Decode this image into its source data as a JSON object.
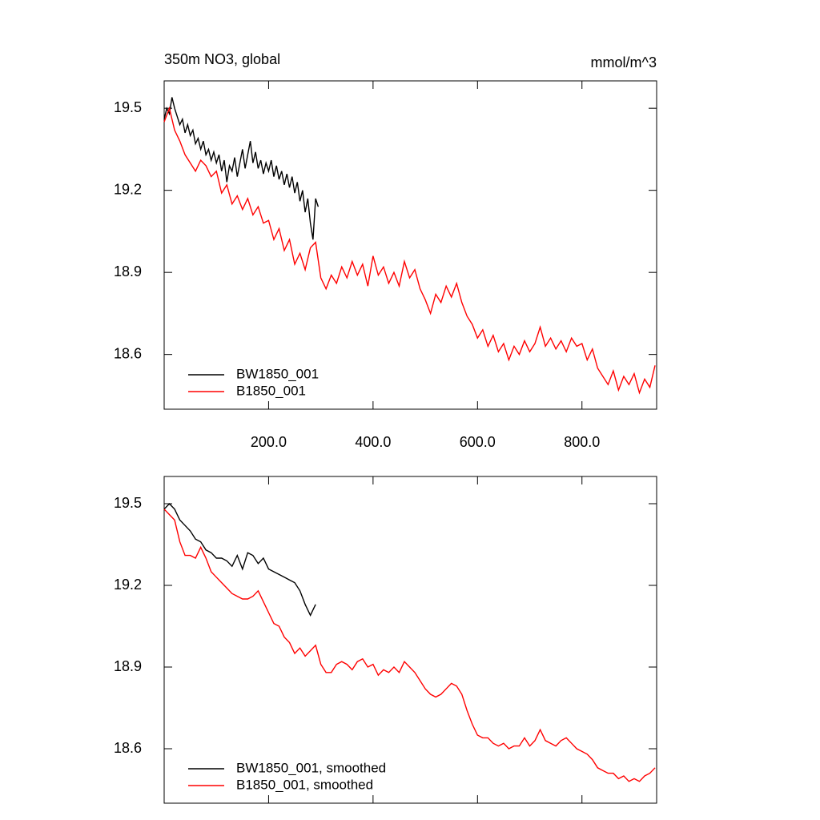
{
  "chart_data": [
    {
      "type": "line",
      "title": "350m NO3, global",
      "units_label": "mmol/m^3",
      "xlim": [
        0,
        943
      ],
      "ylim": [
        18.4,
        19.6
      ],
      "xticks": [
        {
          "value": 200,
          "label": "200.0"
        },
        {
          "value": 400,
          "label": "400.0"
        },
        {
          "value": 600,
          "label": "600.0"
        },
        {
          "value": 800,
          "label": "800.0"
        }
      ],
      "yticks": [
        18.6,
        18.9,
        19.2,
        19.5
      ],
      "legend": "lower left",
      "series": [
        {
          "name": "BW1850_001",
          "color": "#000000",
          "x": [
            0,
            5,
            10,
            15,
            20,
            25,
            30,
            35,
            40,
            45,
            50,
            55,
            60,
            65,
            70,
            75,
            80,
            85,
            90,
            95,
            100,
            105,
            110,
            115,
            120,
            125,
            130,
            135,
            140,
            145,
            150,
            155,
            160,
            165,
            170,
            175,
            180,
            185,
            190,
            195,
            200,
            205,
            210,
            215,
            220,
            225,
            230,
            235,
            240,
            245,
            250,
            255,
            260,
            265,
            270,
            275,
            280,
            285,
            290,
            295
          ],
          "values": [
            19.46,
            19.5,
            19.48,
            19.54,
            19.5,
            19.47,
            19.44,
            19.46,
            19.41,
            19.44,
            19.4,
            19.42,
            19.37,
            19.39,
            19.35,
            19.38,
            19.33,
            19.35,
            19.31,
            19.34,
            19.3,
            19.33,
            19.27,
            19.31,
            19.23,
            19.29,
            19.27,
            19.32,
            19.25,
            19.3,
            19.35,
            19.28,
            19.33,
            19.38,
            19.3,
            19.34,
            19.28,
            19.31,
            19.26,
            19.3,
            19.27,
            19.31,
            19.25,
            19.29,
            19.24,
            19.27,
            19.22,
            19.26,
            19.21,
            19.25,
            19.19,
            19.23,
            19.16,
            19.2,
            19.12,
            19.17,
            19.08,
            19.02,
            19.17,
            19.14
          ]
        },
        {
          "name": "B1850_001",
          "color": "#ff0000",
          "x": [
            0,
            10,
            20,
            30,
            40,
            50,
            60,
            70,
            80,
            90,
            100,
            110,
            120,
            130,
            140,
            150,
            160,
            170,
            180,
            190,
            200,
            210,
            220,
            230,
            240,
            250,
            260,
            270,
            280,
            290,
            300,
            310,
            320,
            330,
            340,
            350,
            360,
            370,
            380,
            390,
            400,
            410,
            420,
            430,
            440,
            450,
            460,
            470,
            480,
            490,
            500,
            510,
            520,
            530,
            540,
            550,
            560,
            570,
            580,
            590,
            600,
            610,
            620,
            630,
            640,
            650,
            660,
            670,
            680,
            690,
            700,
            710,
            720,
            730,
            740,
            750,
            760,
            770,
            780,
            790,
            800,
            810,
            820,
            830,
            840,
            850,
            860,
            870,
            880,
            890,
            900,
            910,
            920,
            930,
            940
          ],
          "values": [
            19.45,
            19.5,
            19.42,
            19.38,
            19.33,
            19.3,
            19.27,
            19.31,
            19.29,
            19.25,
            19.27,
            19.19,
            19.22,
            19.15,
            19.18,
            19.13,
            19.17,
            19.11,
            19.14,
            19.08,
            19.09,
            19.02,
            19.06,
            18.98,
            19.02,
            18.93,
            18.97,
            18.91,
            18.99,
            19.01,
            18.88,
            18.84,
            18.89,
            18.86,
            18.92,
            18.88,
            18.94,
            18.89,
            18.93,
            18.85,
            18.96,
            18.89,
            18.92,
            18.86,
            18.9,
            18.85,
            18.94,
            18.88,
            18.91,
            18.84,
            18.8,
            18.75,
            18.82,
            18.79,
            18.85,
            18.81,
            18.86,
            18.79,
            18.74,
            18.71,
            18.66,
            18.69,
            18.63,
            18.67,
            18.61,
            18.64,
            18.58,
            18.63,
            18.6,
            18.65,
            18.61,
            18.64,
            18.7,
            18.63,
            18.66,
            18.62,
            18.65,
            18.61,
            18.66,
            18.63,
            18.64,
            18.58,
            18.62,
            18.55,
            18.52,
            18.49,
            18.54,
            18.47,
            18.52,
            18.49,
            18.53,
            18.46,
            18.51,
            18.48,
            18.56
          ]
        }
      ]
    },
    {
      "type": "line",
      "xlim": [
        0,
        943
      ],
      "ylim": [
        18.4,
        19.6
      ],
      "xticks": [
        200,
        400,
        600,
        800
      ],
      "yticks": [
        18.6,
        18.9,
        19.2,
        19.5
      ],
      "legend": "lower left",
      "series": [
        {
          "name": "BW1850_001, smoothed",
          "color": "#000000",
          "x": [
            0,
            10,
            20,
            30,
            40,
            50,
            60,
            70,
            80,
            90,
            100,
            110,
            120,
            130,
            140,
            150,
            160,
            170,
            180,
            190,
            200,
            210,
            220,
            230,
            240,
            250,
            260,
            270,
            280,
            290
          ],
          "values": [
            19.48,
            19.5,
            19.48,
            19.44,
            19.42,
            19.4,
            19.37,
            19.36,
            19.33,
            19.32,
            19.3,
            19.3,
            19.29,
            19.27,
            19.31,
            19.26,
            19.32,
            19.31,
            19.28,
            19.3,
            19.26,
            19.25,
            19.24,
            19.23,
            19.22,
            19.21,
            19.18,
            19.13,
            19.09,
            19.13
          ]
        },
        {
          "name": "B1850_001, smoothed",
          "color": "#ff0000",
          "x": [
            0,
            10,
            20,
            30,
            40,
            50,
            60,
            70,
            80,
            90,
            100,
            110,
            120,
            130,
            140,
            150,
            160,
            170,
            180,
            190,
            200,
            210,
            220,
            230,
            240,
            250,
            260,
            270,
            280,
            290,
            300,
            310,
            320,
            330,
            340,
            350,
            360,
            370,
            380,
            390,
            400,
            410,
            420,
            430,
            440,
            450,
            460,
            470,
            480,
            490,
            500,
            510,
            520,
            530,
            540,
            550,
            560,
            570,
            580,
            590,
            600,
            610,
            620,
            630,
            640,
            650,
            660,
            670,
            680,
            690,
            700,
            710,
            720,
            730,
            740,
            750,
            760,
            770,
            780,
            790,
            800,
            810,
            820,
            830,
            840,
            850,
            860,
            870,
            880,
            890,
            900,
            910,
            920,
            930,
            940
          ],
          "values": [
            19.48,
            19.46,
            19.44,
            19.36,
            19.31,
            19.31,
            19.3,
            19.34,
            19.3,
            19.25,
            19.23,
            19.21,
            19.19,
            19.17,
            19.16,
            19.15,
            19.15,
            19.16,
            19.18,
            19.14,
            19.1,
            19.06,
            19.05,
            19.01,
            18.99,
            18.95,
            18.97,
            18.94,
            18.96,
            18.98,
            18.91,
            18.88,
            18.88,
            18.91,
            18.92,
            18.91,
            18.89,
            18.92,
            18.93,
            18.9,
            18.91,
            18.87,
            18.89,
            18.88,
            18.9,
            18.88,
            18.92,
            18.9,
            18.88,
            18.85,
            18.82,
            18.8,
            18.79,
            18.8,
            18.82,
            18.84,
            18.83,
            18.8,
            18.74,
            18.69,
            18.65,
            18.64,
            18.64,
            18.62,
            18.61,
            18.62,
            18.6,
            18.61,
            18.61,
            18.64,
            18.61,
            18.63,
            18.67,
            18.63,
            18.62,
            18.61,
            18.63,
            18.64,
            18.62,
            18.6,
            18.59,
            18.58,
            18.56,
            18.53,
            18.52,
            18.51,
            18.51,
            18.49,
            18.5,
            18.48,
            18.49,
            18.48,
            18.5,
            18.51,
            18.53
          ]
        }
      ]
    }
  ]
}
